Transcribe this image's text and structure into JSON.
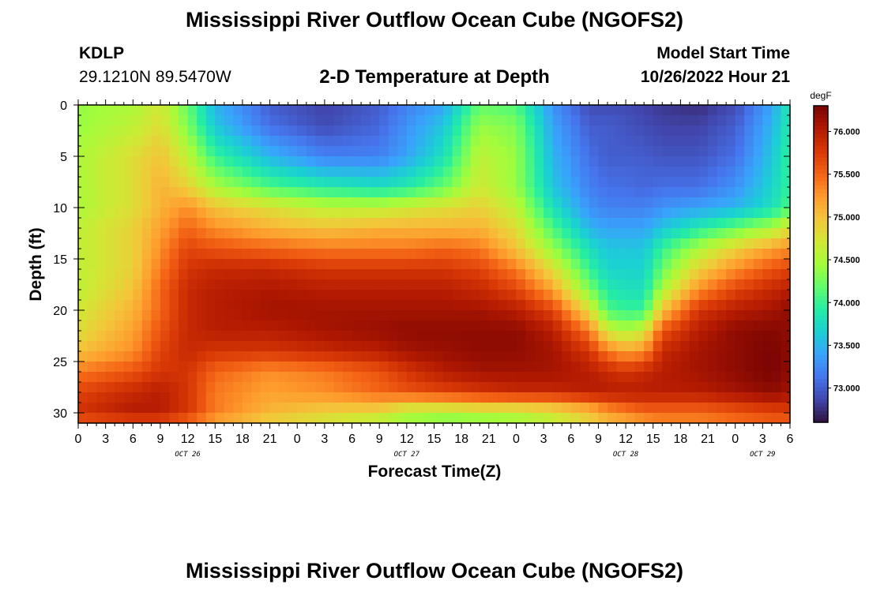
{
  "page": {
    "title": "Mississippi River Outflow Ocean Cube (NGOFS2)",
    "title_repeat": "Mississippi River Outflow Ocean Cube (NGOFS2)",
    "station_id": "KDLP",
    "station_coords": "29.1210N  89.5470W",
    "subtitle": "2-D Temperature at Depth",
    "model_start_label": "Model Start Time",
    "model_start_value": "10/26/2022 Hour 21"
  },
  "chart_data": {
    "type": "heatmap",
    "title": "2-D Temperature at Depth",
    "xlabel": "Forecast Time(Z)",
    "ylabel": "Depth (ft)",
    "x_tick_labels": [
      "0",
      "3",
      "6",
      "9",
      "12",
      "15",
      "18",
      "21",
      "0",
      "3",
      "6",
      "9",
      "12",
      "15",
      "18",
      "21",
      "0",
      "3",
      "6",
      "9",
      "12",
      "15",
      "18",
      "21",
      "0",
      "3",
      "6"
    ],
    "x_range_hours": [
      0,
      78
    ],
    "date_labels": [
      {
        "label": "OCT 26",
        "hour": 12
      },
      {
        "label": "OCT 27",
        "hour": 36
      },
      {
        "label": "OCT 28",
        "hour": 60
      },
      {
        "label": "OCT 29",
        "hour": 75
      }
    ],
    "y_ticks": [
      0,
      5,
      10,
      15,
      20,
      25,
      30
    ],
    "ylim": [
      0,
      31
    ],
    "y_inverted": true,
    "colorbar": {
      "units": "degF",
      "min": 72.6,
      "max": 76.3,
      "ticks": [
        "76.000",
        "75.500",
        "75.000",
        "74.500",
        "74.000",
        "73.500",
        "73.000"
      ],
      "tick_values": [
        76.0,
        75.5,
        75.0,
        74.5,
        74.0,
        73.5,
        73.0
      ],
      "colormap": [
        "#30123b",
        "#4145ab",
        "#4675ed",
        "#39a2fc",
        "#1bcfd4",
        "#24eca6",
        "#61fc6c",
        "#a4fc3b",
        "#d1e834",
        "#f3c63a",
        "#fe9b2d",
        "#f36315",
        "#d93806",
        "#b11901",
        "#7a0403"
      ]
    },
    "field_description": "Temperature (degF) vs forecast hour (x) and depth in ft (y)",
    "rows_depth_ft": [
      0,
      2,
      5,
      8,
      10,
      12,
      14,
      16,
      18,
      20,
      22,
      24,
      26,
      28,
      29.5,
      31
    ],
    "cols_hour": [
      0,
      6,
      9,
      12,
      15,
      21,
      27,
      33,
      36,
      40,
      44,
      48,
      52,
      56,
      58,
      60,
      62,
      64,
      68,
      72,
      76,
      78
    ],
    "values": [
      [
        74.4,
        74.5,
        74.7,
        74.2,
        73.5,
        73.0,
        72.85,
        73.0,
        73.2,
        73.4,
        74.2,
        74.1,
        73.3,
        72.9,
        72.9,
        72.9,
        72.85,
        72.8,
        72.75,
        72.9,
        73.4,
        73.9
      ],
      [
        74.4,
        74.6,
        74.8,
        74.3,
        73.6,
        73.1,
        72.9,
        73.05,
        73.3,
        73.6,
        74.4,
        74.3,
        73.4,
        73.0,
        73.0,
        72.95,
        72.9,
        72.85,
        72.85,
        73.0,
        73.5,
        73.9
      ],
      [
        74.5,
        74.8,
        75.0,
        74.6,
        74.0,
        73.5,
        73.2,
        73.2,
        73.4,
        73.8,
        74.6,
        74.4,
        73.5,
        73.1,
        73.0,
        73.0,
        73.0,
        72.95,
        72.95,
        73.1,
        73.6,
        74.0
      ],
      [
        74.5,
        74.8,
        75.1,
        74.9,
        74.5,
        74.1,
        73.9,
        73.8,
        73.9,
        74.2,
        74.7,
        74.4,
        73.6,
        73.2,
        73.1,
        73.1,
        73.05,
        73.1,
        73.1,
        73.3,
        73.7,
        74.0
      ],
      [
        74.5,
        74.8,
        75.1,
        75.3,
        75.0,
        74.8,
        74.6,
        74.6,
        74.7,
        74.8,
        74.9,
        74.6,
        73.8,
        73.3,
        73.2,
        73.2,
        73.2,
        73.3,
        73.4,
        73.5,
        73.8,
        74.1
      ],
      [
        74.6,
        74.9,
        75.2,
        75.5,
        75.3,
        75.1,
        75.0,
        75.1,
        75.1,
        75.1,
        75.1,
        74.8,
        74.1,
        73.5,
        73.4,
        73.4,
        73.4,
        73.6,
        73.9,
        74.2,
        74.5,
        74.8
      ],
      [
        74.6,
        74.9,
        75.3,
        75.7,
        75.6,
        75.5,
        75.4,
        75.4,
        75.4,
        75.5,
        75.4,
        75.0,
        74.4,
        73.8,
        73.6,
        73.6,
        73.6,
        74.0,
        74.5,
        74.9,
        75.2,
        75.3
      ],
      [
        74.6,
        74.9,
        75.4,
        75.8,
        75.9,
        75.9,
        75.8,
        75.8,
        75.8,
        75.8,
        75.7,
        75.4,
        74.8,
        74.0,
        73.7,
        73.7,
        73.7,
        74.2,
        74.9,
        75.3,
        75.6,
        75.7
      ],
      [
        74.6,
        75.0,
        75.5,
        75.9,
        76.0,
        76.05,
        76.0,
        76.0,
        76.0,
        76.0,
        75.9,
        75.7,
        75.2,
        74.3,
        73.9,
        73.8,
        73.8,
        74.5,
        75.3,
        75.7,
        75.9,
        76.0
      ],
      [
        74.7,
        75.1,
        75.5,
        75.9,
        76.0,
        76.1,
        76.1,
        76.1,
        76.1,
        76.1,
        76.1,
        76.0,
        75.7,
        74.8,
        74.1,
        74.0,
        74.0,
        75.0,
        75.8,
        76.0,
        76.1,
        76.2
      ],
      [
        74.8,
        75.2,
        75.6,
        75.9,
        76.0,
        76.0,
        76.1,
        76.15,
        76.2,
        76.2,
        76.2,
        76.2,
        76.0,
        75.4,
        74.7,
        74.5,
        74.7,
        75.6,
        76.0,
        76.2,
        76.25,
        76.2
      ],
      [
        75.0,
        75.3,
        75.7,
        75.9,
        75.8,
        75.8,
        75.9,
        76.0,
        76.1,
        76.15,
        76.2,
        76.2,
        76.1,
        75.8,
        75.4,
        75.2,
        75.3,
        75.9,
        76.1,
        76.2,
        76.3,
        76.2
      ],
      [
        75.4,
        75.6,
        75.8,
        75.8,
        75.5,
        75.3,
        75.4,
        75.6,
        75.8,
        76.0,
        76.1,
        76.1,
        76.1,
        76.0,
        75.9,
        75.8,
        75.9,
        76.0,
        76.1,
        76.2,
        76.3,
        76.2
      ],
      [
        75.7,
        75.9,
        76.0,
        75.8,
        75.4,
        75.2,
        75.3,
        75.5,
        75.6,
        75.7,
        75.8,
        75.9,
        75.9,
        76.0,
        76.0,
        76.0,
        76.0,
        76.0,
        76.0,
        76.1,
        76.2,
        76.1
      ],
      [
        75.8,
        76.0,
        76.0,
        75.8,
        75.4,
        75.1,
        75.0,
        75.0,
        74.8,
        74.8,
        74.9,
        74.9,
        75.0,
        75.2,
        75.4,
        75.5,
        75.6,
        75.6,
        75.6,
        75.7,
        75.8,
        75.8
      ],
      [
        75.6,
        75.7,
        75.7,
        75.5,
        75.2,
        74.9,
        74.7,
        74.5,
        74.3,
        74.2,
        74.2,
        74.3,
        74.5,
        74.8,
        75.0,
        75.1,
        75.2,
        75.3,
        75.3,
        75.4,
        75.5,
        75.5
      ]
    ]
  }
}
